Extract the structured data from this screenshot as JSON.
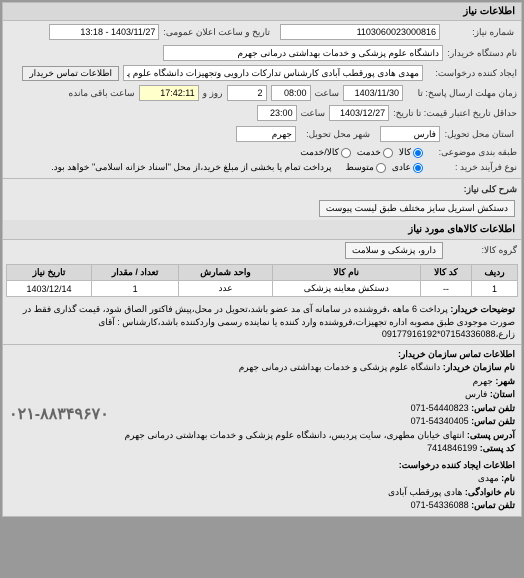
{
  "panel": {
    "title": "اطلاعات نیاز"
  },
  "fields": {
    "reqNo_label": "شماره نیاز:",
    "reqNo": "1103060023000816",
    "announceDate_label": "تاریخ و ساعت اعلان عمومی:",
    "announceDate": "1403/11/27 - 13:18",
    "buyer_label": "نام دستگاه خریدار:",
    "buyer": "دانشگاه علوم پزشکی و خدمات بهداشتی درمانی جهرم",
    "creator_label": "ایجاد کننده درخواست:",
    "creator": "مهدی هادی پورقطب آبادی کارشناس تدارکات دارویی وتجهیزات دانشگاه علوم پز",
    "contactBuyerBtn": "اطلاعات تماس خریدار",
    "replyDeadline_label": "زمان مهلت ارسال پاسخ: تا",
    "replyDeadlineDate": "1403/11/30",
    "time_label": "ساعت",
    "replyDeadlineTime": "08:00",
    "days_label": "روز و",
    "days": "2",
    "remain_label": "ساعت باقی مانده",
    "remain": "17:42:11",
    "priceValid_label": "حداقل تاریخ اعتبار قیمت: تا تاریخ:",
    "priceValidDate": "1403/12/27",
    "priceValidTime": "23:00",
    "deliveryProv_label": "استان محل تحویل:",
    "deliveryProv": "فارس",
    "deliveryCity_label": "شهر محل تحویل:",
    "deliveryCity": "جهرم",
    "budgetType_label": "طبقه بندی موضوعی:",
    "budget_opts": {
      "a": "کالا",
      "b": "خدمت",
      "c": "کالا/خدمت"
    },
    "purchaseProcess_label": "نوع فرآیند خرید :",
    "process_opts": {
      "a": "عادی",
      "b": "متوسط"
    },
    "paymentNote": "پرداخت تمام یا بخشی از مبلغ خرید،از محل \"اسناد خزانه اسلامی\" خواهد بود.",
    "generalTitle_label": "شرح کلی نیاز:",
    "generalTitle": "دستکش استریل سایز مختلف طبق لیست پیوست",
    "goodsSection": "اطلاعات کالاهای مورد نیاز",
    "goodsGroup_label": "گروه کالا:",
    "goodsGroup": "دارو، پزشکی و سلامت"
  },
  "table": {
    "headers": [
      "ردیف",
      "کد کالا",
      "نام کالا",
      "واحد شمارش",
      "تعداد / مقدار",
      "تاریخ نیاز"
    ],
    "rows": [
      [
        "1",
        "--",
        "دستکش معاینه پزشکی",
        "عدد",
        "1",
        "1403/12/14"
      ]
    ]
  },
  "desc": {
    "label": "توضیحات خریدار:",
    "text": "پرداخت 6 ماهه ،فروشنده در سامانه آی مد عضو باشد،تحویل در محل،پیش فاکتور الصاق شود، قیمت گذاری فقط در صورت موجودی طبق مصوبه اداره تجهیزات،فروشنده وارد کننده یا نماینده رسمی واردکننده باشد،کارشناس : آقای زارع،07154336088*09177916192"
  },
  "contact": {
    "sectionTitle": "اطلاعات تماس سازمان خریدار:",
    "orgName_label": "نام سازمان خریدار:",
    "orgName": "دانشگاه علوم پزشکی و خدمات بهداشتی درمانی جهرم",
    "city_label": "شهر:",
    "city": "جهرم",
    "province_label": "استان:",
    "province": "فارس",
    "phone_label": "تلفن تماس:",
    "phone": "54440823-071",
    "fax_label": "تلفن تماس:",
    "fax": "54340405-071",
    "address_label": "آدرس پستی:",
    "address": "انتهای خیابان مطهری، سایت پردیس، دانشگاه علوم پزشکی و خدمات بهداشتی درمانی جهرم",
    "postal_label": "کد پستی:",
    "postal": "7414846199",
    "creatorSection": "اطلاعات ایجاد کننده درخواست:",
    "fname_label": "نام:",
    "fname": "مهدی",
    "lname_label": "نام خانوادگی:",
    "lname": "هادی پورقطب آبادی",
    "cphone_label": "تلفن تماس:",
    "cphone": "54336088-071",
    "bigPhone": "۰۲۱-۸۸۳۴۹۶۷۰"
  },
  "colors": {
    "bg": "#e8e8e8",
    "header": "#d8d8d8",
    "border": "#bbb",
    "highlight_remain": "#ffffcc"
  }
}
